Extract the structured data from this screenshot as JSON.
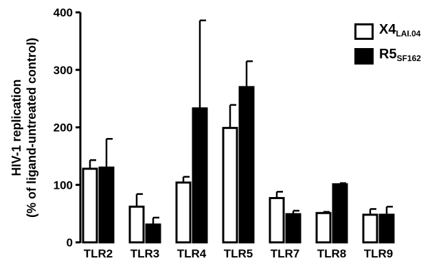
{
  "chart_data": {
    "type": "bar",
    "categories": [
      "TLR2",
      "TLR3",
      "TLR4",
      "TLR5",
      "TLR7",
      "TLR8",
      "TLR9"
    ],
    "series": [
      {
        "name": "X4",
        "name_subscript": "LAI.04",
        "fill": "#ffffff",
        "values": [
          128,
          62,
          104,
          199,
          77,
          51,
          48
        ],
        "error": [
          15,
          22,
          10,
          40,
          11,
          2,
          10
        ]
      },
      {
        "name": "R5",
        "name_subscript": "SF162",
        "fill": "#000000",
        "values": [
          130,
          31,
          233,
          270,
          49,
          101,
          48
        ],
        "error": [
          50,
          12,
          153,
          45,
          6,
          2,
          14
        ]
      }
    ],
    "ylabel_line1": "HIV-1 replication",
    "ylabel_line2": "(% of ligand-untreated control)",
    "xlabel": "",
    "ylim": [
      0,
      400
    ],
    "yticks": [
      0,
      100,
      200,
      300,
      400
    ],
    "grid": false,
    "legend_position": "top-right"
  }
}
